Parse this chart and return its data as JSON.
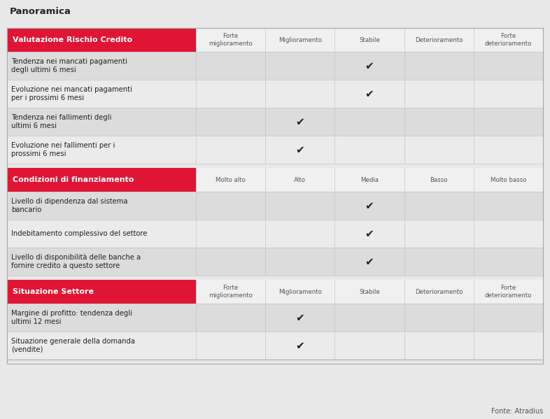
{
  "title": "Panoramica",
  "source": "Fonte: Atradius",
  "outer_bg": "#e8e8e8",
  "table_bg": "#f0f0f0",
  "header_bg": "#e01535",
  "header_text_color": "#ffffff",
  "row_bg_even": "#dcdcdc",
  "row_bg_odd": "#ebebeb",
  "col_label_bg": "#f0f0f0",
  "check_color": "#222222",
  "text_color": "#222222",
  "col_label_color": "#555555",
  "sections": [
    {
      "header": "Valutazione Rischio Credito",
      "col_labels": [
        "Forte\nmiglioramento",
        "Miglioramento",
        "Stabile",
        "Deterioramento",
        "Forte\ndeterioramento"
      ],
      "rows": [
        {
          "label": "Tendenza nei mancati pagamenti\ndegli ultimi 6 mesi",
          "check_col": 2
        },
        {
          "label": "Evoluzione nei mancati pagamenti\nper i prossimi 6 mesi",
          "check_col": 2
        },
        {
          "label": "Tendenza nei fallimenti degli\nultimi 6 mesi",
          "check_col": 1
        },
        {
          "label": "Evoluzione nei fallimenti per i\nprossimi 6 mesi",
          "check_col": 1
        }
      ]
    },
    {
      "header": "Condizioni di finanziamento",
      "col_labels": [
        "Molto alto",
        "Alto",
        "Media",
        "Basso",
        "Molto basso"
      ],
      "rows": [
        {
          "label": "Livello di dipendenza dal sistema\nbancario",
          "check_col": 2
        },
        {
          "label": "Indebitamento complessivo del settore",
          "check_col": 2
        },
        {
          "label": "Livello di disponibilità delle banche a\nfornire credito a questo settore",
          "check_col": 2
        }
      ]
    },
    {
      "header": "Situazione Settore",
      "col_labels": [
        "Forte\nmiglioramento",
        "Miglioramento",
        "Stabile",
        "Deterioramento",
        "Forte\ndeterioramento"
      ],
      "rows": [
        {
          "label": "Margine di profitto: tendenza degli\nultimi 12 mesi",
          "check_col": 1
        },
        {
          "label": "Situazione generale della domanda\n(vendite)",
          "check_col": 1
        }
      ]
    }
  ],
  "fig_width": 7.86,
  "fig_height": 5.99,
  "dpi": 100
}
